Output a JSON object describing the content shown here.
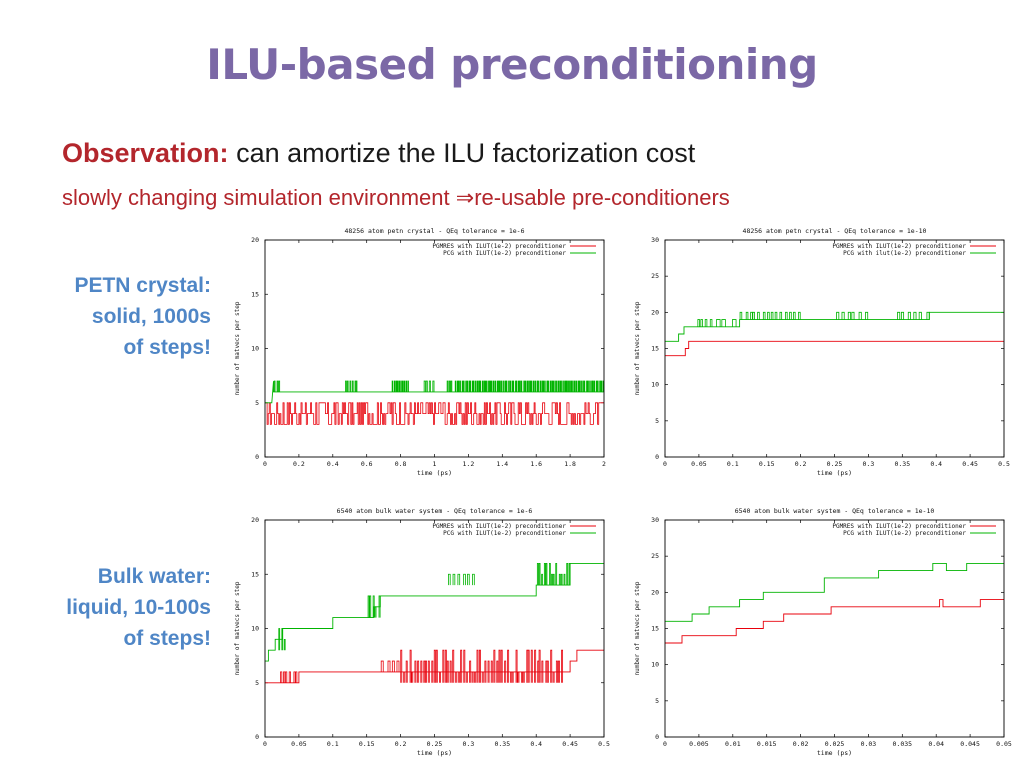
{
  "slide": {
    "title": "ILU-based preconditioning",
    "observation": {
      "label": "Observation:",
      "text": "can amortize the ILU factorization cost"
    },
    "subtitle": {
      "before": "slowly changing simulation environment ",
      "arrow": "⇒",
      "after": "re-usable pre-conditioners"
    }
  },
  "labels": {
    "petn": [
      "PETN crystal:",
      "solid, 1000s",
      "of steps!"
    ],
    "water": [
      "Bulk water:",
      "liquid, 10-100s",
      "of steps!"
    ]
  },
  "colors": {
    "title": "#7b68a6",
    "accent_red": "#b3262c",
    "side_blue": "#4f86c6",
    "series_red": "#e8000b",
    "series_green": "#00b400"
  },
  "chart_data": [
    {
      "id": "c1",
      "type": "line",
      "title": "48256 atom petn crystal - QEq tolerance = 1e-6",
      "xlabel": "time (ps)",
      "ylabel": "number of matvecs per step",
      "xlim": [
        0,
        2
      ],
      "ylim": [
        0,
        20
      ],
      "xticks": [
        "0",
        "0.2",
        "0.4",
        "0.6",
        "0.8",
        "1",
        "1.2",
        "1.4",
        "1.6",
        "1.8",
        "2"
      ],
      "yticks": [
        "0",
        "5",
        "10",
        "15",
        "20"
      ],
      "series": [
        {
          "name": "PGMRES with ILUT(1e-2) preconditioner",
          "color": "#e8000b",
          "kind": "noise",
          "x": [
            0.0,
            2.0
          ],
          "min": 3,
          "max": 5,
          "base": 3
        },
        {
          "name": "PCG with ILUT(1e-2) preconditioner",
          "color": "#00b400",
          "x": [
            0,
            0.04,
            0.05,
            0.05,
            0.09,
            0.09,
            0.55,
            2.0
          ],
          "y": [
            5,
            5,
            7,
            6,
            6,
            6,
            6,
            6
          ]
        },
        {
          "name": "",
          "color": "#00b400",
          "kind": "spikes",
          "low": 6,
          "high": 7,
          "ranges": [
            [
              0.05,
              0.09,
              3
            ],
            [
              0.47,
              0.55,
              6
            ],
            [
              0.75,
              0.85,
              10
            ],
            [
              0.93,
              1.0,
              4
            ],
            [
              1.07,
              1.11,
              3
            ],
            [
              1.12,
              2.0,
              90
            ]
          ]
        }
      ]
    },
    {
      "id": "c2",
      "type": "line",
      "title": "48256 atom petn crystal - QEq tolerance = 1e-10",
      "xlabel": "time (ps)",
      "ylabel": "number of matvecs per step",
      "xlim": [
        0,
        0.5
      ],
      "ylim": [
        0,
        30
      ],
      "xticks": [
        "0",
        "0.05",
        "0.1",
        "0.15",
        "0.2",
        "0.25",
        "0.3",
        "0.35",
        "0.4",
        "0.45",
        "0.5"
      ],
      "yticks": [
        "0",
        "5",
        "10",
        "15",
        "20",
        "25",
        "30"
      ],
      "series": [
        {
          "name": "PGMRES with ILUT(1e-2) preconditioner",
          "color": "#e8000b",
          "x": [
            0,
            0.03,
            0.03,
            0.035,
            0.035,
            0.5
          ],
          "y": [
            14,
            14,
            15,
            15,
            16,
            16
          ]
        },
        {
          "name": "PCG with ilut(1e-2) preconditioner",
          "color": "#00b400",
          "x": [
            0,
            0.02,
            0.02,
            0.028,
            0.028,
            0.045,
            0.045,
            0.07,
            0.07,
            0.11,
            0.11,
            0.39,
            0.39,
            0.5
          ],
          "y": [
            16,
            16,
            17,
            17,
            18,
            18,
            18,
            18,
            18,
            18,
            19,
            19,
            20,
            20
          ]
        },
        {
          "name": "",
          "color": "#00b400",
          "kind": "spikes",
          "low": 18,
          "high": 19,
          "ranges": [
            [
              0.045,
              0.07,
              4
            ],
            [
              0.07,
              0.11,
              3
            ]
          ]
        },
        {
          "name": "",
          "color": "#00b400",
          "kind": "spikes",
          "low": 19,
          "high": 20,
          "ranges": [
            [
              0.11,
              0.2,
              14
            ],
            [
              0.25,
              0.3,
              6
            ],
            [
              0.34,
              0.39,
              6
            ]
          ]
        }
      ]
    },
    {
      "id": "c3",
      "type": "line",
      "title": "6540 atom bulk water system - QEq tolerance = 1e-6",
      "xlabel": "time (ps)",
      "ylabel": "number of matvecs per step",
      "xlim": [
        0,
        0.5
      ],
      "ylim": [
        0,
        20
      ],
      "xticks": [
        "0",
        "0.05",
        "0.1",
        "0.15",
        "0.2",
        "0.25",
        "0.3",
        "0.35",
        "0.4",
        "0.45",
        "0.5"
      ],
      "yticks": [
        "0",
        "5",
        "10",
        "15",
        "20"
      ],
      "series": [
        {
          "name": "PGMRES with ILUT(1e-2) preconditioner",
          "color": "#e8000b",
          "x": [
            0,
            0.02,
            0.02,
            0.05,
            0.05,
            0.17,
            0.17,
            0.45,
            0.45,
            0.46,
            0.46,
            0.5
          ],
          "y": [
            5,
            5,
            5,
            5,
            6,
            6,
            6,
            6,
            7,
            7,
            8,
            8
          ]
        },
        {
          "name": "",
          "color": "#e8000b",
          "kind": "spikes",
          "low": 5,
          "high": 6,
          "ranges": [
            [
              0.02,
              0.05,
              6
            ]
          ]
        },
        {
          "name": "",
          "color": "#e8000b",
          "kind": "spikes",
          "low": 6,
          "high": 7,
          "ranges": [
            [
              0.17,
              0.2,
              4
            ]
          ]
        },
        {
          "name": "",
          "color": "#e8000b",
          "kind": "spikes",
          "low": 5,
          "high": 8,
          "ranges": [
            [
              0.2,
              0.44,
              60
            ]
          ]
        },
        {
          "name": "PCG with ILUT(1e-2) preconditioner",
          "color": "#00b400",
          "x": [
            0,
            0.005,
            0.005,
            0.015,
            0.015,
            0.025,
            0.025,
            0.1,
            0.1,
            0.13,
            0.13,
            0.16,
            0.16,
            0.17,
            0.17,
            0.27,
            0.27,
            0.4,
            0.4,
            0.45,
            0.45,
            0.5
          ],
          "y": [
            7,
            7,
            8,
            8,
            9,
            9,
            10,
            10,
            11,
            11,
            11,
            11,
            12,
            12,
            13,
            13,
            13,
            13,
            14,
            14,
            16,
            16
          ]
        },
        {
          "name": "",
          "color": "#00b400",
          "kind": "spikes",
          "low": 8,
          "high": 10,
          "ranges": [
            [
              0.02,
              0.03,
              3
            ]
          ]
        },
        {
          "name": "",
          "color": "#00b400",
          "kind": "spikes",
          "low": 11,
          "high": 13,
          "ranges": [
            [
              0.15,
              0.17,
              5
            ]
          ]
        },
        {
          "name": "",
          "color": "#00b400",
          "kind": "spikes",
          "low": 14,
          "high": 15,
          "ranges": [
            [
              0.27,
              0.31,
              6
            ]
          ]
        },
        {
          "name": "",
          "color": "#00b400",
          "kind": "spikes",
          "low": 14,
          "high": 16,
          "ranges": [
            [
              0.4,
              0.45,
              14
            ]
          ]
        }
      ]
    },
    {
      "id": "c4",
      "type": "line",
      "title": "6540 atom bulk water system - QEq tolerance = 1e-10",
      "xlabel": "time (ps)",
      "ylabel": "number of matvecs per step",
      "xlim": [
        0,
        0.05
      ],
      "ylim": [
        0,
        30
      ],
      "xticks": [
        "0",
        "0.005",
        "0.01",
        "0.015",
        "0.02",
        "0.025",
        "0.03",
        "0.035",
        "0.04",
        "0.045",
        "0.05"
      ],
      "yticks": [
        "0",
        "5",
        "10",
        "15",
        "20",
        "25",
        "30"
      ],
      "series": [
        {
          "name": "PGMRES with ILUT(1e-2) preconditioner",
          "color": "#e8000b",
          "x": [
            0,
            0.0015,
            0.0015,
            0.0025,
            0.0025,
            0.0055,
            0.0055,
            0.0105,
            0.0105,
            0.0125,
            0.0125,
            0.0145,
            0.0145,
            0.0175,
            0.0175,
            0.0235,
            0.0235,
            0.0245,
            0.0245,
            0.0405,
            0.0405,
            0.041,
            0.041,
            0.0465,
            0.0465,
            0.05
          ],
          "y": [
            13,
            13,
            13,
            13,
            14,
            14,
            14,
            14,
            15,
            15,
            15,
            15,
            16,
            16,
            17,
            17,
            17,
            17,
            18,
            18,
            19,
            19,
            18,
            18,
            19,
            19
          ]
        },
        {
          "name": "PCG with ILUT(1e-2) preconditioner",
          "color": "#00b400",
          "x": [
            0,
            0.004,
            0.004,
            0.0065,
            0.0065,
            0.011,
            0.011,
            0.0145,
            0.0145,
            0.0165,
            0.0165,
            0.0235,
            0.0235,
            0.0315,
            0.0315,
            0.0355,
            0.0355,
            0.0375,
            0.0375,
            0.0395,
            0.0395,
            0.0415,
            0.0415,
            0.0445,
            0.0445,
            0.05
          ],
          "y": [
            16,
            16,
            17,
            17,
            18,
            18,
            19,
            19,
            20,
            20,
            20,
            20,
            22,
            22,
            23,
            23,
            23,
            23,
            23,
            23,
            24,
            24,
            23,
            23,
            24,
            24
          ]
        }
      ]
    }
  ]
}
